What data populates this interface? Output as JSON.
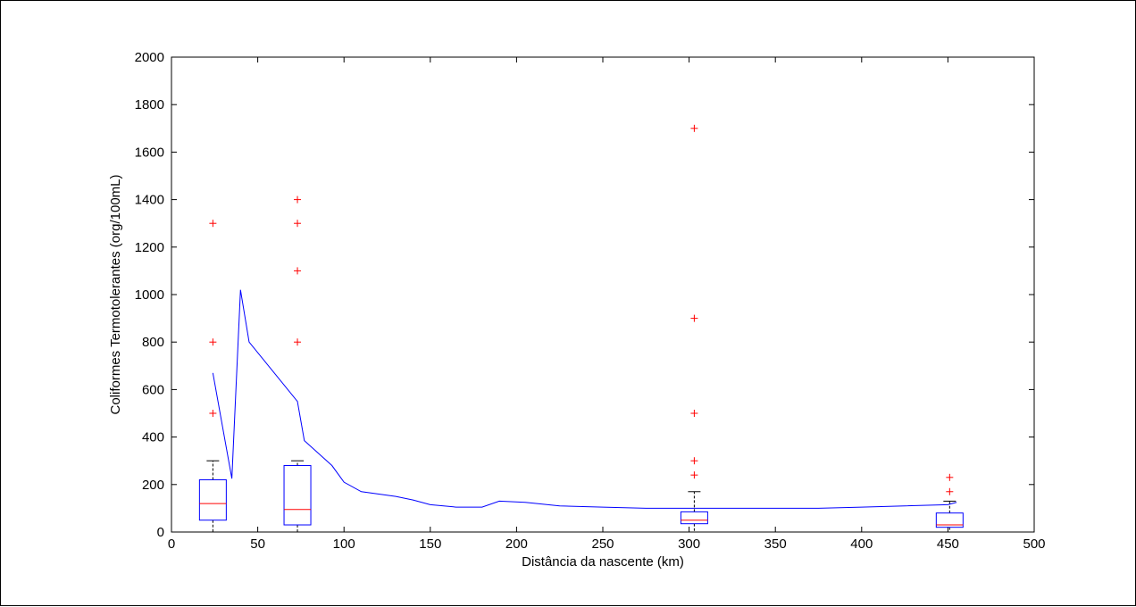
{
  "chart_data": {
    "type": "box",
    "title": "",
    "xlabel": "Distância da nascente (km)",
    "ylabel": "Coliformes Termotolerantes (org/100mL)",
    "xlim": [
      0,
      500
    ],
    "ylim": [
      0,
      2000
    ],
    "xticks": [
      0,
      50,
      100,
      150,
      200,
      250,
      300,
      350,
      400,
      450,
      500
    ],
    "yticks": [
      0,
      200,
      400,
      600,
      800,
      1000,
      1200,
      1400,
      1600,
      1800,
      2000
    ],
    "grid": false,
    "legend": "none",
    "colors": {
      "box": "#0000ff",
      "median": "#ff0000",
      "outlier": "#ff0000",
      "whisker": "#000000",
      "line": "#0000ff"
    },
    "boxes": [
      {
        "x": 24,
        "q1": 50,
        "median": 120,
        "q3": 220,
        "whisker_low": 0,
        "whisker_high": 300,
        "outliers": [
          500,
          800,
          1300
        ]
      },
      {
        "x": 73,
        "q1": 30,
        "median": 95,
        "q3": 280,
        "whisker_low": 0,
        "whisker_high": 300,
        "outliers": [
          800,
          1100,
          1300,
          1400
        ]
      },
      {
        "x": 303,
        "q1": 35,
        "median": 50,
        "q3": 85,
        "whisker_low": 0,
        "whisker_high": 170,
        "outliers": [
          240,
          300,
          500,
          900,
          1700
        ]
      },
      {
        "x": 451,
        "q1": 20,
        "median": 30,
        "q3": 80,
        "whisker_low": 0,
        "whisker_high": 130,
        "outliers": [
          170,
          230
        ]
      }
    ],
    "line_series": {
      "x": [
        24,
        35,
        40,
        45,
        73,
        77,
        93,
        100,
        110,
        130,
        140,
        150,
        165,
        180,
        190,
        205,
        225,
        250,
        275,
        300,
        325,
        350,
        375,
        400,
        425,
        450,
        455
      ],
      "y": [
        670,
        225,
        1020,
        800,
        550,
        385,
        280,
        210,
        170,
        150,
        135,
        115,
        105,
        105,
        130,
        125,
        110,
        105,
        100,
        100,
        100,
        100,
        100,
        105,
        110,
        115,
        125
      ]
    }
  }
}
